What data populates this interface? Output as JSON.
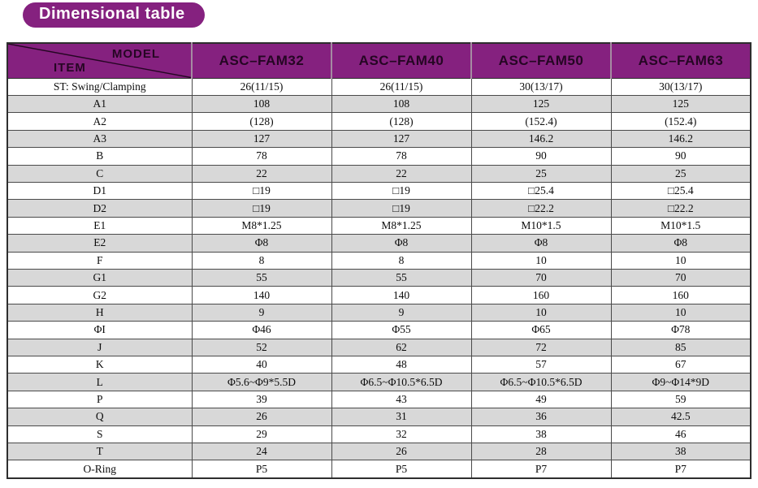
{
  "page": {
    "title": "Dimensional table"
  },
  "colors": {
    "purple": "#85217f",
    "header_text": "#250623",
    "alt_row_gray": "#d8d8d8",
    "grid_border": "#4a4a4a",
    "outer_border": "#2e2e2e",
    "header_separator": "#a58ba2",
    "title_text": "#ffffff"
  },
  "table": {
    "header": {
      "model": "MODEL",
      "item": "ITEM"
    },
    "columns": [
      "ASC–FAM32",
      "ASC–FAM40",
      "ASC–FAM50",
      "ASC–FAM63"
    ],
    "rows": [
      {
        "label": "ST: Swing/Clamping",
        "values": [
          "26(11/15)",
          "26(11/15)",
          "30(13/17)",
          "30(13/17)"
        ]
      },
      {
        "label": "A1",
        "values": [
          "108",
          "108",
          "125",
          "125"
        ]
      },
      {
        "label": "A2",
        "values": [
          "(128)",
          "(128)",
          "(152.4)",
          "(152.4)"
        ]
      },
      {
        "label": "A3",
        "values": [
          "127",
          "127",
          "146.2",
          "146.2"
        ]
      },
      {
        "label": "B",
        "values": [
          "78",
          "78",
          "90",
          "90"
        ]
      },
      {
        "label": "C",
        "values": [
          "22",
          "22",
          "25",
          "25"
        ]
      },
      {
        "label": "D1",
        "values": [
          "□19",
          "□19",
          "□25.4",
          "□25.4"
        ]
      },
      {
        "label": "D2",
        "values": [
          "□19",
          "□19",
          "□22.2",
          "□22.2"
        ]
      },
      {
        "label": "E1",
        "values": [
          "M8*1.25",
          "M8*1.25",
          "M10*1.5",
          "M10*1.5"
        ]
      },
      {
        "label": "E2",
        "values": [
          "Φ8",
          "Φ8",
          "Φ8",
          "Φ8"
        ]
      },
      {
        "label": "F",
        "values": [
          "8",
          "8",
          "10",
          "10"
        ]
      },
      {
        "label": "G1",
        "values": [
          "55",
          "55",
          "70",
          "70"
        ]
      },
      {
        "label": "G2",
        "values": [
          "140",
          "140",
          "160",
          "160"
        ]
      },
      {
        "label": "H",
        "values": [
          "9",
          "9",
          "10",
          "10"
        ]
      },
      {
        "label": "ΦI",
        "values": [
          "Φ46",
          "Φ55",
          "Φ65",
          "Φ78"
        ]
      },
      {
        "label": "J",
        "values": [
          "52",
          "62",
          "72",
          "85"
        ]
      },
      {
        "label": "K",
        "values": [
          "40",
          "48",
          "57",
          "67"
        ]
      },
      {
        "label": "L",
        "values": [
          "Φ5.6~Φ9*5.5D",
          "Φ6.5~Φ10.5*6.5D",
          "Φ6.5~Φ10.5*6.5D",
          "Φ9~Φ14*9D"
        ]
      },
      {
        "label": "P",
        "values": [
          "39",
          "43",
          "49",
          "59"
        ]
      },
      {
        "label": "Q",
        "values": [
          "26",
          "31",
          "36",
          "42.5"
        ]
      },
      {
        "label": "S",
        "values": [
          "29",
          "32",
          "38",
          "46"
        ]
      },
      {
        "label": "T",
        "values": [
          "24",
          "26",
          "28",
          "38"
        ]
      },
      {
        "label": "O-Ring",
        "values": [
          "P5",
          "P5",
          "P7",
          "P7"
        ]
      }
    ]
  }
}
